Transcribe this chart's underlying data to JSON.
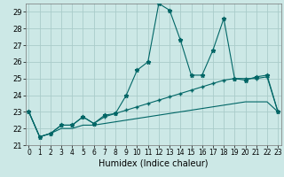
{
  "title": "",
  "xlabel": "Humidex (Indice chaleur)",
  "ylabel": "",
  "bg_color": "#cce8e6",
  "grid_color": "#aaccca",
  "line_color": "#006666",
  "xmin": 0,
  "xmax": 23,
  "ymin": 21,
  "ymax": 29.5,
  "yticks": [
    21,
    22,
    23,
    24,
    25,
    26,
    27,
    28,
    29
  ],
  "line1_x": [
    0,
    1,
    2,
    3,
    4,
    5,
    6,
    7,
    8,
    9,
    10,
    11,
    12,
    13,
    14,
    15,
    16,
    17,
    18,
    19,
    20,
    21,
    22,
    23
  ],
  "line1_y": [
    23.0,
    21.5,
    21.7,
    22.2,
    22.2,
    22.7,
    22.3,
    22.8,
    22.9,
    24.0,
    25.5,
    26.0,
    29.5,
    29.1,
    27.3,
    25.2,
    25.2,
    26.7,
    28.6,
    25.0,
    24.9,
    25.1,
    25.2,
    23.0
  ],
  "line2_x": [
    0,
    1,
    2,
    3,
    4,
    5,
    6,
    7,
    8,
    9,
    10,
    11,
    12,
    13,
    14,
    15,
    16,
    17,
    18,
    19,
    20,
    21,
    22,
    23
  ],
  "line2_y": [
    23.0,
    21.5,
    21.7,
    22.2,
    22.2,
    22.7,
    22.3,
    22.7,
    22.9,
    23.1,
    23.3,
    23.5,
    23.7,
    23.9,
    24.1,
    24.3,
    24.5,
    24.7,
    24.9,
    25.0,
    25.0,
    25.0,
    25.1,
    23.0
  ],
  "line3_x": [
    0,
    1,
    2,
    3,
    4,
    5,
    6,
    7,
    8,
    9,
    10,
    11,
    12,
    13,
    14,
    15,
    16,
    17,
    18,
    19,
    20,
    21,
    22,
    23
  ],
  "line3_y": [
    23.0,
    21.5,
    21.7,
    22.0,
    22.0,
    22.2,
    22.2,
    22.3,
    22.4,
    22.5,
    22.6,
    22.7,
    22.8,
    22.9,
    23.0,
    23.1,
    23.2,
    23.3,
    23.4,
    23.5,
    23.6,
    23.6,
    23.6,
    23.0
  ],
  "ylabel_fontsize": 6,
  "xlabel_fontsize": 7,
  "tick_fontsize": 5.5,
  "ytick_fontsize": 6
}
